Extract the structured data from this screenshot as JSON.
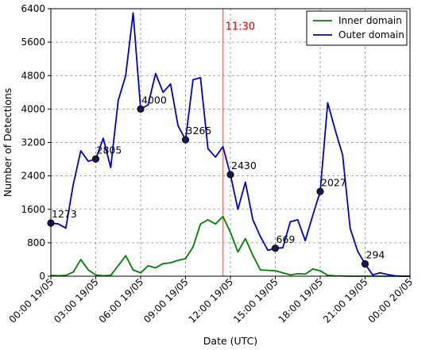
{
  "chart_data": {
    "type": "line",
    "xlabel": "Date (UTC)",
    "ylabel": "Number of Detections",
    "ylim": [
      0,
      6400
    ],
    "xlim_hours": [
      0,
      24
    ],
    "grid": true,
    "legend_position": "top-right",
    "y_ticks": [
      0,
      800,
      1600,
      2400,
      3200,
      4000,
      4800,
      5600,
      6400
    ],
    "x_ticks": [
      {
        "hour": 0,
        "label": "00:00 19/05"
      },
      {
        "hour": 3,
        "label": "03:00 19/05"
      },
      {
        "hour": 6,
        "label": "06:00 19/05"
      },
      {
        "hour": 9,
        "label": "09:00 19/05"
      },
      {
        "hour": 12,
        "label": "12:00 19/05"
      },
      {
        "hour": 15,
        "label": "15:00 19/05"
      },
      {
        "hour": 18,
        "label": "18:00 19/05"
      },
      {
        "hour": 21,
        "label": "21:00 19/05"
      },
      {
        "hour": 24,
        "label": "00:00 20/05"
      }
    ],
    "series": [
      {
        "name": "Inner domain",
        "color": "#008000",
        "points": [
          [
            0,
            20
          ],
          [
            0.5,
            10
          ],
          [
            1,
            20
          ],
          [
            1.5,
            100
          ],
          [
            2,
            400
          ],
          [
            2.5,
            150
          ],
          [
            3,
            30
          ],
          [
            3.5,
            10
          ],
          [
            4,
            20
          ],
          [
            4.5,
            250
          ],
          [
            5,
            490
          ],
          [
            5.5,
            150
          ],
          [
            6,
            80
          ],
          [
            6.5,
            250
          ],
          [
            7,
            200
          ],
          [
            7.5,
            300
          ],
          [
            8,
            320
          ],
          [
            8.5,
            380
          ],
          [
            9,
            420
          ],
          [
            9.5,
            700
          ],
          [
            10,
            1250
          ],
          [
            10.5,
            1350
          ],
          [
            11,
            1250
          ],
          [
            11.5,
            1430
          ],
          [
            12,
            1050
          ],
          [
            12.5,
            580
          ],
          [
            13,
            900
          ],
          [
            13.5,
            500
          ],
          [
            14,
            150
          ],
          [
            14.5,
            140
          ],
          [
            15,
            130
          ],
          [
            15.5,
            80
          ],
          [
            16,
            30
          ],
          [
            16.5,
            60
          ],
          [
            17,
            50
          ],
          [
            17.5,
            170
          ],
          [
            18,
            130
          ],
          [
            18.5,
            20
          ],
          [
            19,
            10
          ],
          [
            19.5,
            5
          ],
          [
            20,
            0
          ],
          [
            20.5,
            0
          ],
          [
            21,
            0
          ],
          [
            21.5,
            0
          ],
          [
            22,
            0
          ],
          [
            22.5,
            0
          ],
          [
            23,
            0
          ],
          [
            23.5,
            0
          ],
          [
            24,
            0
          ]
        ]
      },
      {
        "name": "Outer domain",
        "color": "#0000cc",
        "points": [
          [
            0,
            1273
          ],
          [
            0.5,
            1250
          ],
          [
            1,
            1150
          ],
          [
            1.5,
            2200
          ],
          [
            2,
            3000
          ],
          [
            2.5,
            2750
          ],
          [
            3,
            2805
          ],
          [
            3.5,
            3300
          ],
          [
            4,
            2600
          ],
          [
            4.5,
            4200
          ],
          [
            5,
            4800
          ],
          [
            5.5,
            6300
          ],
          [
            6,
            4000
          ],
          [
            6.5,
            4100
          ],
          [
            7,
            4850
          ],
          [
            7.5,
            4400
          ],
          [
            8,
            4600
          ],
          [
            8.5,
            3600
          ],
          [
            9,
            3265
          ],
          [
            9.5,
            4700
          ],
          [
            10,
            4750
          ],
          [
            10.5,
            3050
          ],
          [
            11,
            2850
          ],
          [
            11.5,
            3100
          ],
          [
            12,
            2430
          ],
          [
            12.5,
            1600
          ],
          [
            13,
            2250
          ],
          [
            13.5,
            1350
          ],
          [
            14,
            950
          ],
          [
            14.5,
            620
          ],
          [
            15,
            669
          ],
          [
            15.5,
            680
          ],
          [
            16,
            1300
          ],
          [
            16.5,
            1350
          ],
          [
            17,
            850
          ],
          [
            17.5,
            1450
          ],
          [
            18,
            2027
          ],
          [
            18.5,
            4150
          ],
          [
            19,
            3500
          ],
          [
            19.5,
            2900
          ],
          [
            20,
            1150
          ],
          [
            20.5,
            600
          ],
          [
            21,
            294
          ],
          [
            21.5,
            30
          ],
          [
            22,
            80
          ],
          [
            22.5,
            40
          ],
          [
            23,
            10
          ],
          [
            23.5,
            0
          ],
          [
            24,
            0
          ]
        ]
      }
    ],
    "markers": [
      {
        "hour": 0,
        "value": 1273,
        "label": "1273"
      },
      {
        "hour": 3,
        "value": 2805,
        "label": "2805"
      },
      {
        "hour": 6,
        "value": 4000,
        "label": "4000"
      },
      {
        "hour": 9,
        "value": 3265,
        "label": "3265"
      },
      {
        "hour": 12,
        "value": 2430,
        "label": "2430"
      },
      {
        "hour": 15,
        "value": 669,
        "label": "669"
      },
      {
        "hour": 18,
        "value": 2027,
        "label": "2027"
      },
      {
        "hour": 21,
        "value": 294,
        "label": "294"
      }
    ],
    "vline": {
      "hour": 11.5,
      "label": "11:30",
      "color": "#e06060",
      "text_color": "#cc0000"
    }
  }
}
